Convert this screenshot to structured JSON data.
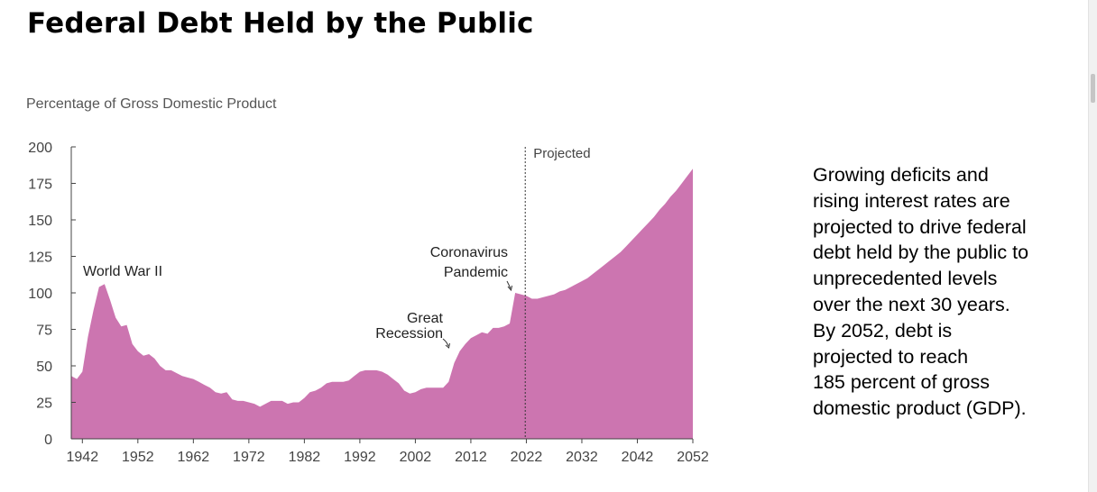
{
  "title": "Federal Debt Held by the Public",
  "description": [
    "Growing deficits and",
    "rising interest rates are",
    "projected to drive federal",
    "debt held by the public to",
    "unprecedented levels",
    "over the next 30 years.",
    "By 2052, debt is",
    "projected to reach",
    "185 percent of gross",
    "domestic product (GDP)."
  ],
  "colors": {
    "area_fill": "#cc75b0",
    "axis": "#444444",
    "tick_text": "#444444",
    "annotation_text": "#222222"
  },
  "chart_data": {
    "type": "area",
    "title": "Federal Debt Held by the Public",
    "ylabel": "Percentage of Gross Domestic Product",
    "xlabel": "",
    "ylim": [
      0,
      200
    ],
    "xlim": [
      1940,
      2052
    ],
    "yticks": [
      0,
      25,
      50,
      75,
      100,
      125,
      150,
      175,
      200
    ],
    "xticks": [
      1942,
      1952,
      1962,
      1972,
      1982,
      1992,
      2002,
      2012,
      2022,
      2032,
      2042,
      2052
    ],
    "grid": false,
    "series": [
      {
        "name": "Debt held by the public",
        "x": [
          1940,
          1941,
          1942,
          1943,
          1944,
          1945,
          1946,
          1947,
          1948,
          1949,
          1950,
          1951,
          1952,
          1953,
          1954,
          1955,
          1956,
          1957,
          1958,
          1959,
          1960,
          1961,
          1962,
          1963,
          1964,
          1965,
          1966,
          1967,
          1968,
          1969,
          1970,
          1971,
          1972,
          1973,
          1974,
          1975,
          1976,
          1977,
          1978,
          1979,
          1980,
          1981,
          1982,
          1983,
          1984,
          1985,
          1986,
          1987,
          1988,
          1989,
          1990,
          1991,
          1992,
          1993,
          1994,
          1995,
          1996,
          1997,
          1998,
          1999,
          2000,
          2001,
          2002,
          2003,
          2004,
          2005,
          2006,
          2007,
          2008,
          2009,
          2010,
          2011,
          2012,
          2013,
          2014,
          2015,
          2016,
          2017,
          2018,
          2019,
          2020,
          2021,
          2022,
          2023,
          2024,
          2025,
          2026,
          2027,
          2028,
          2029,
          2030,
          2031,
          2032,
          2033,
          2034,
          2035,
          2036,
          2037,
          2038,
          2039,
          2040,
          2041,
          2042,
          2043,
          2044,
          2045,
          2046,
          2047,
          2048,
          2049,
          2050,
          2051,
          2052
        ],
        "values": [
          43,
          41,
          46,
          70,
          88,
          104,
          106,
          95,
          83,
          77,
          78,
          65,
          60,
          57,
          58,
          55,
          50,
          47,
          47,
          45,
          43,
          42,
          41,
          39,
          37,
          35,
          32,
          31,
          32,
          27,
          26,
          26,
          25,
          24,
          22,
          24,
          26,
          26,
          26,
          24,
          25,
          25,
          28,
          32,
          33,
          35,
          38,
          39,
          39,
          39,
          40,
          43,
          46,
          47,
          47,
          47,
          46,
          44,
          41,
          38,
          33,
          31,
          32,
          34,
          35,
          35,
          35,
          35,
          39,
          52,
          60,
          65,
          69,
          71,
          73,
          72,
          76,
          76,
          77,
          79,
          100,
          99,
          98,
          96,
          96,
          97,
          98,
          99,
          101,
          102,
          104,
          106,
          108,
          110,
          113,
          116,
          119,
          122,
          125,
          128,
          132,
          136,
          140,
          144,
          148,
          152,
          157,
          161,
          166,
          170,
          175,
          180,
          185
        ]
      }
    ],
    "divider": {
      "x": 2021.8,
      "label": "Projected"
    },
    "annotations": [
      {
        "text": "World War II",
        "x": 1946,
        "y": 106
      },
      {
        "lines": [
          "Great",
          "Recession"
        ],
        "x": 2009,
        "y": 62
      },
      {
        "lines": [
          "Coronavirus",
          "Pandemic"
        ],
        "x": 2020,
        "y": 100
      }
    ]
  }
}
